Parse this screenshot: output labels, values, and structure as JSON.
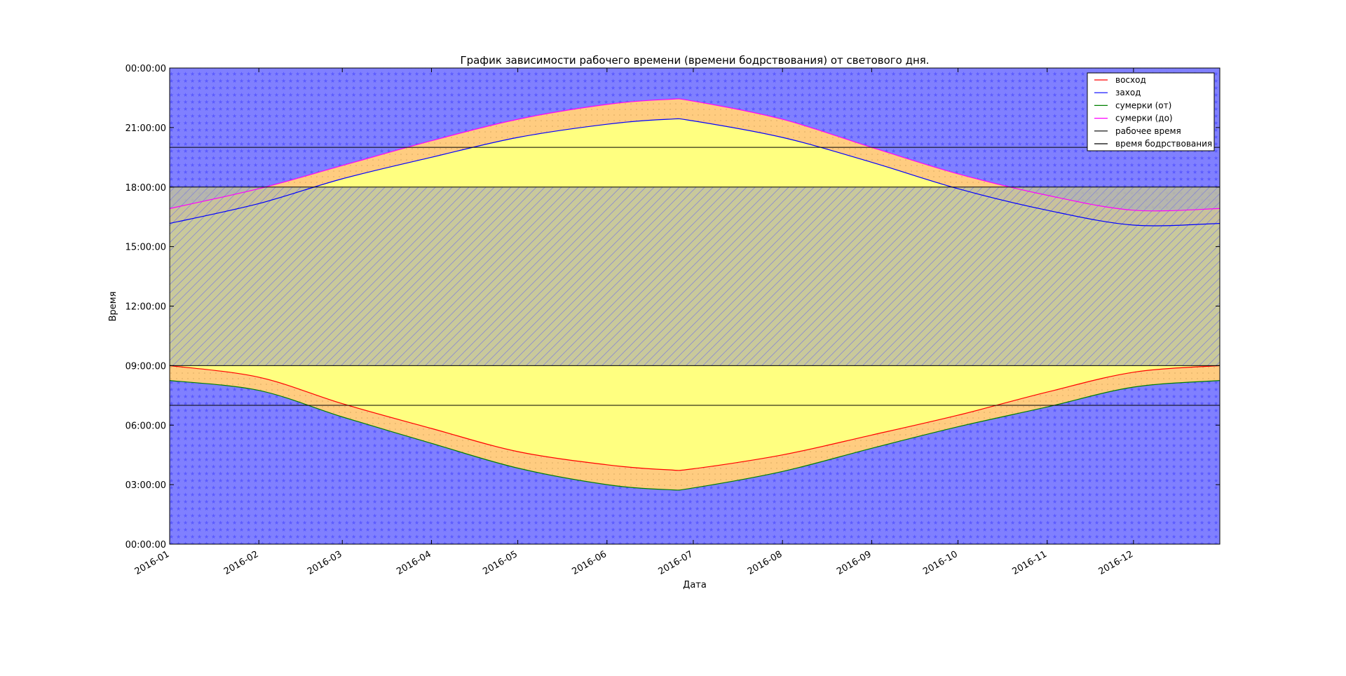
{
  "chart_data": {
    "type": "area",
    "title": "График зависимости рабочего времени (времени бодрствования) от светового дня.",
    "xlabel": "Дата",
    "ylabel": "Время",
    "x_ticks": [
      "2016-01",
      "2016-02",
      "2016-03",
      "2016-04",
      "2016-05",
      "2016-06",
      "2016-07",
      "2016-08",
      "2016-09",
      "2016-10",
      "2016-11",
      "2016-12"
    ],
    "y_ticks": [
      "00:00:00",
      "03:00:00",
      "06:00:00",
      "09:00:00",
      "12:00:00",
      "15:00:00",
      "18:00:00",
      "21:00:00",
      "00:00:00"
    ],
    "xlim": [
      "2016-01-01",
      "2016-12-31"
    ],
    "ylim": [
      "00:00",
      "24:00"
    ],
    "grid": false,
    "legend_position": "top-right",
    "series": [
      {
        "name": "восход",
        "color": "#ff0000",
        "dates": [
          "2016-01-01",
          "2016-02-01",
          "2016-03-01",
          "2016-04-01",
          "2016-05-01",
          "2016-06-01",
          "2016-06-22",
          "2016-07-01",
          "2016-08-01",
          "2016-09-01",
          "2016-10-01",
          "2016-11-01",
          "2016-12-01",
          "2016-12-31"
        ],
        "values": [
          "09:00",
          "08:25",
          "07:05",
          "05:50",
          "04:40",
          "04:00",
          "03:45",
          "03:48",
          "04:30",
          "05:30",
          "06:30",
          "07:40",
          "08:40",
          "09:00"
        ]
      },
      {
        "name": "заход",
        "color": "#0000ff",
        "dates": [
          "2016-01-01",
          "2016-02-01",
          "2016-03-01",
          "2016-04-01",
          "2016-05-01",
          "2016-06-01",
          "2016-06-22",
          "2016-07-01",
          "2016-08-01",
          "2016-09-01",
          "2016-10-01",
          "2016-11-01",
          "2016-12-01",
          "2016-12-31"
        ],
        "values": [
          "16:10",
          "17:10",
          "18:25",
          "19:30",
          "20:30",
          "21:10",
          "21:25",
          "21:20",
          "20:30",
          "19:15",
          "17:55",
          "16:50",
          "16:05",
          "16:10"
        ]
      },
      {
        "name": "сумерки (от)",
        "color": "#008000",
        "dates": [
          "2016-01-01",
          "2016-02-01",
          "2016-03-01",
          "2016-04-01",
          "2016-05-01",
          "2016-06-01",
          "2016-06-22",
          "2016-07-01",
          "2016-08-01",
          "2016-09-01",
          "2016-10-01",
          "2016-11-01",
          "2016-12-01",
          "2016-12-31"
        ],
        "values": [
          "08:15",
          "07:45",
          "06:25",
          "05:05",
          "03:50",
          "03:00",
          "02:45",
          "02:50",
          "03:40",
          "04:50",
          "05:55",
          "06:55",
          "07:55",
          "08:15"
        ]
      },
      {
        "name": "сумерки (до)",
        "color": "#ff00ff",
        "dates": [
          "2016-01-01",
          "2016-02-01",
          "2016-03-01",
          "2016-04-01",
          "2016-05-01",
          "2016-06-01",
          "2016-06-22",
          "2016-07-01",
          "2016-08-01",
          "2016-09-01",
          "2016-10-01",
          "2016-11-01",
          "2016-12-01",
          "2016-12-31"
        ],
        "values": [
          "16:55",
          "17:55",
          "19:05",
          "20:20",
          "21:25",
          "22:10",
          "22:25",
          "22:20",
          "21:25",
          "20:00",
          "18:40",
          "17:35",
          "16:50",
          "16:55"
        ]
      },
      {
        "name": "рабочее время",
        "color": "#000000",
        "dates": [
          "2016-01-01",
          "2016-12-31"
        ],
        "from": "09:00",
        "to": "18:00"
      },
      {
        "name": "время бодрствования",
        "color": "#000000",
        "dates": [
          "2016-01-01",
          "2016-12-31"
        ],
        "from": "07:00",
        "to": "20:00"
      }
    ],
    "fill_colors": {
      "night": "#8080ff",
      "twilight": "#ffcc80",
      "day": "#ffff80",
      "work": "#c0c0a0"
    }
  }
}
